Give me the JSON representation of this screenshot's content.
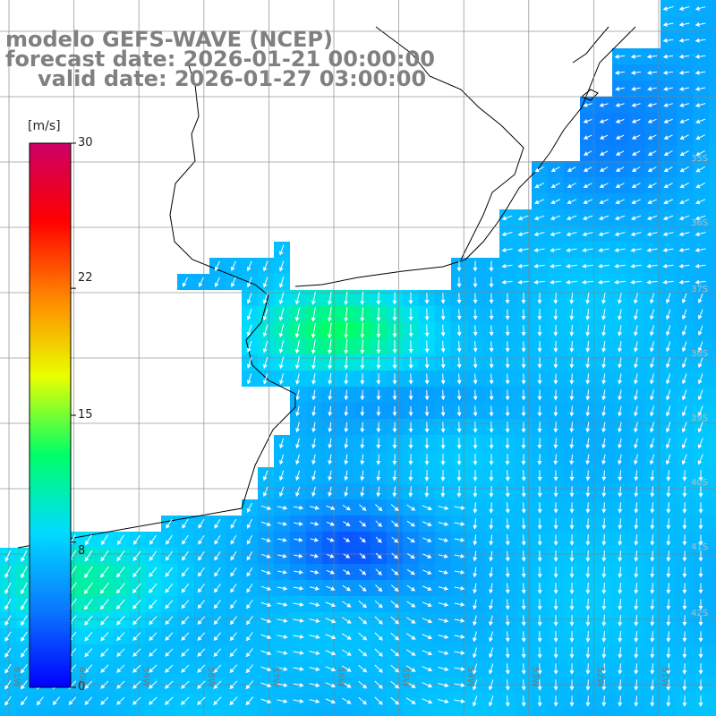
{
  "title": {
    "model": "modelo GEFS-WAVE (NCEP)",
    "forecast": "forecast date: 2026-01-21 00:00:00",
    "valid": "valid date: 2026-01-27 03:00:00"
  },
  "colorbar": {
    "unit": "[m/s]",
    "min": 0,
    "max": 30,
    "ticks": [
      "30",
      "22",
      "15",
      "8",
      "0"
    ],
    "tick_values": [
      30,
      22,
      15,
      8,
      0
    ],
    "colors": [
      "#0000ff",
      "#0a78ff",
      "#00dcff",
      "#00ff66",
      "#eaff00",
      "#ff8800",
      "#ff0000",
      "#cc0066"
    ]
  },
  "axes": {
    "lon_labels": [
      "61W",
      "60W",
      "59W",
      "58W",
      "57W",
      "56W",
      "55W",
      "54W",
      "53W",
      "52W",
      "51W"
    ],
    "lat_labels": [
      "35S",
      "36S",
      "37S",
      "38S",
      "39S",
      "40S",
      "41S",
      "42S"
    ]
  },
  "colors": {
    "land": "#ffffff",
    "coast": "#000000",
    "grid": "#808080",
    "arrows": "#ffffff"
  }
}
